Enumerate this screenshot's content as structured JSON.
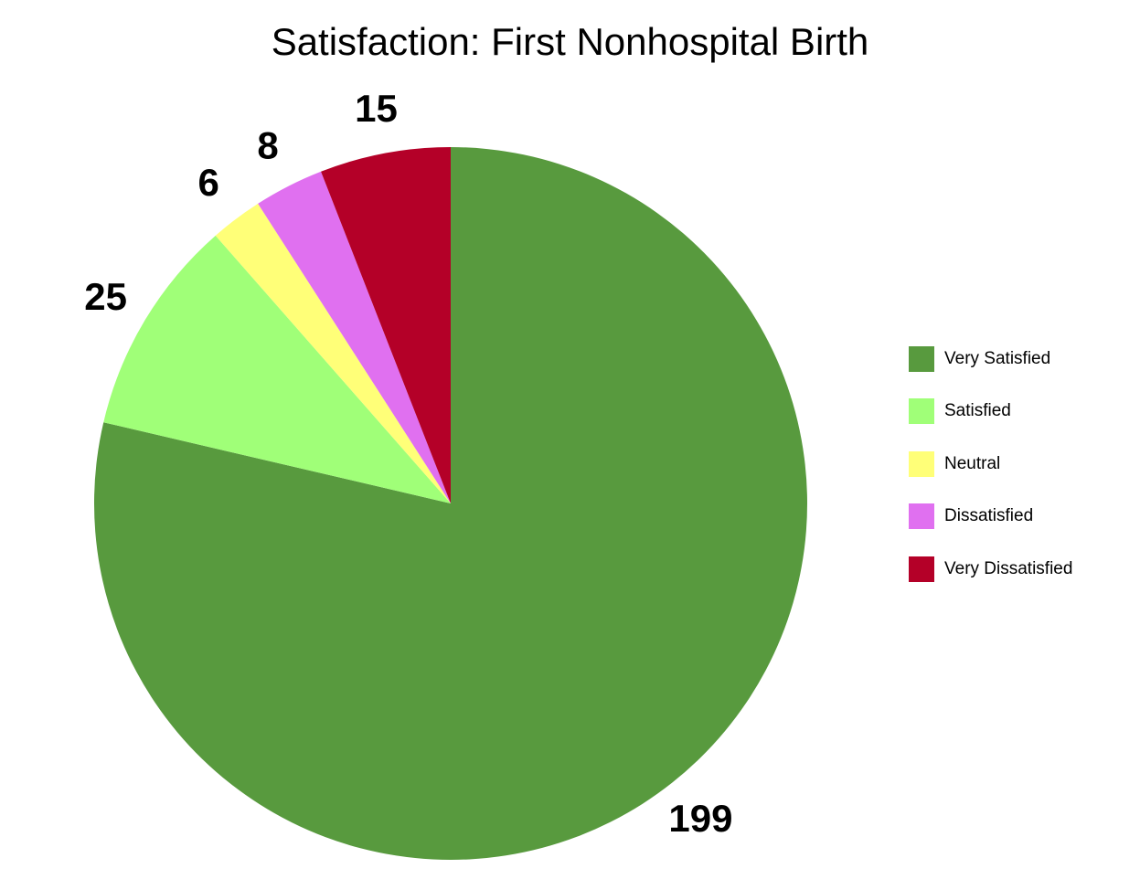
{
  "chart_data": {
    "type": "pie",
    "title": "Satisfaction: First Nonhospital Birth",
    "start_angle": "top, clockwise",
    "legend_position": "right",
    "slices": [
      {
        "label": "Very Satisfied",
        "value": 199,
        "color": "#589A3E"
      },
      {
        "label": "Satisfied",
        "value": 25,
        "color": "#A0FF78"
      },
      {
        "label": "Neutral",
        "value": 6,
        "color": "#FFFF78"
      },
      {
        "label": "Dissatisfied",
        "value": 8,
        "color": "#E070F0"
      },
      {
        "label": "Very Dissatisfied",
        "value": 15,
        "color": "#B40028"
      }
    ]
  }
}
